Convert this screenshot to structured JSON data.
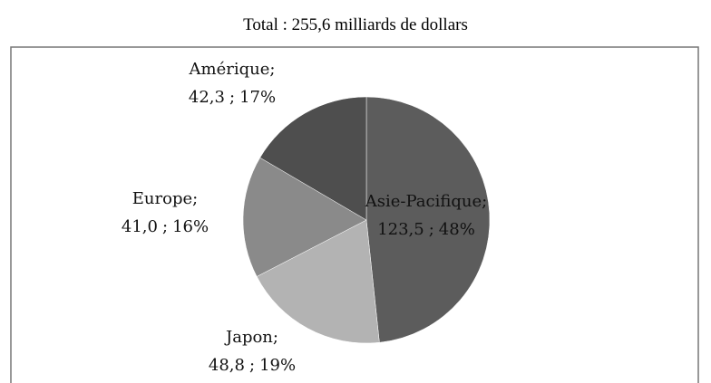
{
  "chart_data": {
    "type": "pie",
    "title": "Total : 255,6 milliards de dollars",
    "categories": [
      "Asie-Pacifique",
      "Japon",
      "Europe",
      "Amérique"
    ],
    "values": [
      123.5,
      48.8,
      41.0,
      42.3
    ],
    "value_labels": [
      "123,5",
      "48,8",
      "41,0",
      "42,3"
    ],
    "percents": [
      48,
      19,
      16,
      17
    ],
    "percent_labels": [
      "48%",
      "19%",
      "16%",
      "17%"
    ],
    "separator": ";",
    "colors": [
      "#5c5c5c",
      "#b3b3b3",
      "#8a8a8a",
      "#4e4e4e"
    ]
  }
}
